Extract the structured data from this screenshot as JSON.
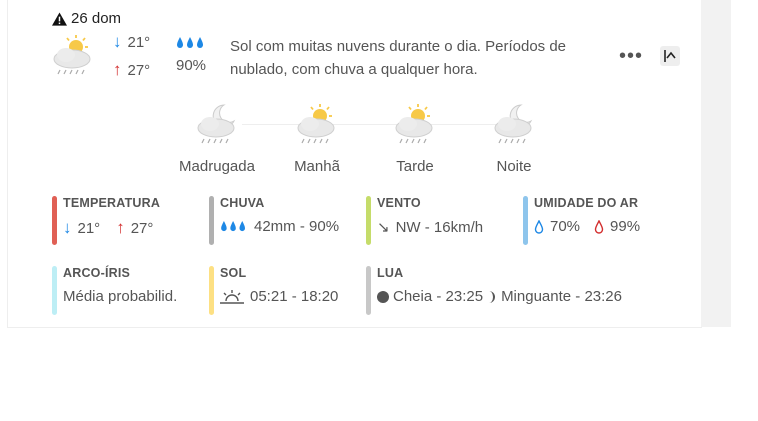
{
  "day": {
    "label": "26 dom",
    "icon": "alert-triangle-icon"
  },
  "summary": {
    "icon": "partly-cloudy-rain-icon",
    "temp_min": "21°",
    "temp_max": "27°",
    "rain_icon": "rain-drops-icon",
    "rain_prob": "90%",
    "description": "Sol com muitas nuvens durante o dia. Períodos de nublado, com chuva a qualquer hora."
  },
  "actions": {
    "more": "•••",
    "collapse_icon": "collapse-icon"
  },
  "periods": [
    {
      "label": "Madrugada",
      "icon": "cloudy-moon-rain-icon"
    },
    {
      "label": "Manhã",
      "icon": "cloudy-sun-rain-icon"
    },
    {
      "label": "Tarde",
      "icon": "cloudy-sun-rain-icon"
    },
    {
      "label": "Noite",
      "icon": "cloudy-moon-rain-icon"
    }
  ],
  "stats": {
    "temperatura": {
      "title": "TEMPERATURA",
      "min": "21°",
      "max": "27°",
      "color": "#e06055"
    },
    "chuva": {
      "title": "CHUVA",
      "value": "42mm - 90%",
      "color": "#b0b0b0"
    },
    "vento": {
      "title": "VENTO",
      "value": "NW - 16km/h",
      "color": "#c5dc6a"
    },
    "umidade": {
      "title": "UMIDADE DO AR",
      "min": "70%",
      "max": "99%",
      "color": "#8ec5ec"
    },
    "arco_iris": {
      "title": "ARCO-ÍRIS",
      "value": "Média probabilid.",
      "color": "#bdeef5"
    },
    "sol": {
      "title": "SOL",
      "value": "05:21 - 18:20",
      "color": "#fde083"
    },
    "lua": {
      "title": "LUA",
      "full": "Cheia - 23:25",
      "waning": "Minguante - 23:26",
      "color": "#c8c8c8"
    }
  }
}
